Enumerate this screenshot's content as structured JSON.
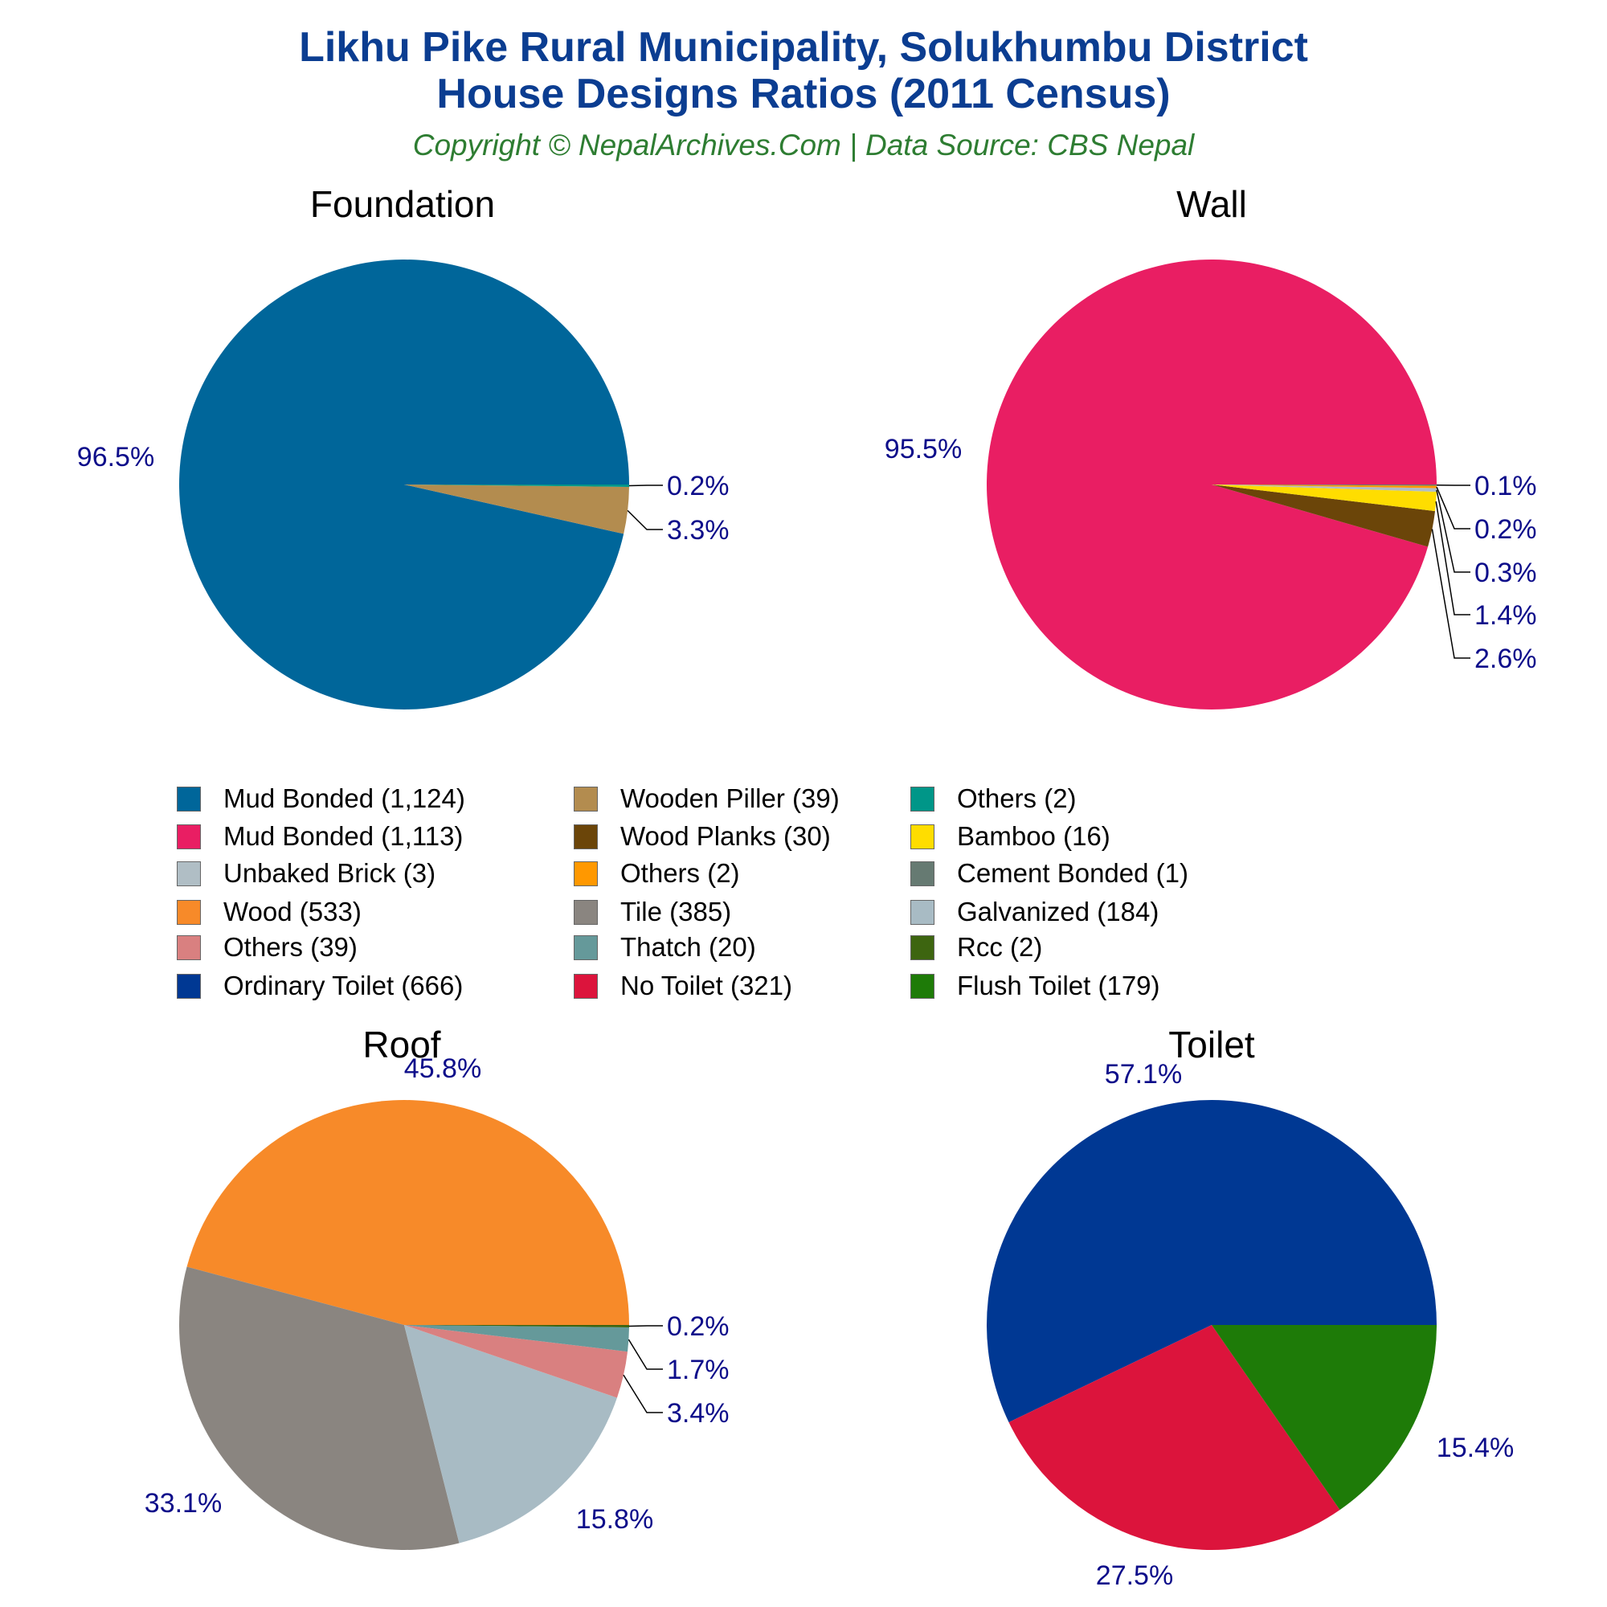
{
  "title_line1": "Likhu Pike Rural Municipality, Solukhumbu District",
  "title_line2": "House Designs Ratios (2011 Census)",
  "subtitle": "Copyright © NepalArchives.Com | Data Source: CBS Nepal",
  "chart_data": [
    {
      "type": "pie",
      "title": "Foundation",
      "slices": [
        {
          "label": "Mud Bonded",
          "value": 1124,
          "percent": "96.5%",
          "color": "#00669a"
        },
        {
          "label": "Wooden Piller",
          "value": 39,
          "percent": "3.3%",
          "color": "#b38c4f"
        },
        {
          "label": "Others",
          "value": 2,
          "percent": "0.2%",
          "color": "#009688"
        }
      ]
    },
    {
      "type": "pie",
      "title": "Wall",
      "slices": [
        {
          "label": "Mud Bonded",
          "value": 1113,
          "percent": "95.5%",
          "color": "#e91e63"
        },
        {
          "label": "Wood Planks",
          "value": 30,
          "percent": "2.6%",
          "color": "#6b4509"
        },
        {
          "label": "Bamboo",
          "value": 16,
          "percent": "1.4%",
          "color": "#ffdd00"
        },
        {
          "label": "Unbaked Brick",
          "value": 3,
          "percent": "0.3%",
          "color": "#b0bec5"
        },
        {
          "label": "Others",
          "value": 2,
          "percent": "0.2%",
          "color": "#ff9800"
        },
        {
          "label": "Cement Bonded",
          "value": 1,
          "percent": "0.1%",
          "color": "#667a72"
        }
      ]
    },
    {
      "type": "pie",
      "title": "Roof",
      "slices": [
        {
          "label": "Wood",
          "value": 533,
          "percent": "45.8%",
          "color": "#f78a29"
        },
        {
          "label": "Tile",
          "value": 385,
          "percent": "33.1%",
          "color": "#8a8580"
        },
        {
          "label": "Galvanized",
          "value": 184,
          "percent": "15.8%",
          "color": "#a8bbc4"
        },
        {
          "label": "Others",
          "value": 39,
          "percent": "3.4%",
          "color": "#d98080"
        },
        {
          "label": "Thatch",
          "value": 20,
          "percent": "1.7%",
          "color": "#65999a"
        },
        {
          "label": "Rcc",
          "value": 2,
          "percent": "0.2%",
          "color": "#3d6510"
        }
      ]
    },
    {
      "type": "pie",
      "title": "Toilet",
      "slices": [
        {
          "label": "Ordinary Toilet",
          "value": 666,
          "percent": "57.1%",
          "color": "#003893"
        },
        {
          "label": "No Toilet",
          "value": 321,
          "percent": "27.5%",
          "color": "#dc143c"
        },
        {
          "label": "Flush Toilet",
          "value": 179,
          "percent": "15.4%",
          "color": "#1e7b08"
        }
      ]
    }
  ],
  "legend": [
    {
      "text": "Mud Bonded (1,124)",
      "color": "#00669a"
    },
    {
      "text": "Mud Bonded (1,113)",
      "color": "#e91e63"
    },
    {
      "text": "Unbaked Brick (3)",
      "color": "#b0bec5"
    },
    {
      "text": "Wood (533)",
      "color": "#f78a29"
    },
    {
      "text": "Others (39)",
      "color": "#d98080"
    },
    {
      "text": "Ordinary Toilet (666)",
      "color": "#003893"
    },
    {
      "text": "Wooden Piller (39)",
      "color": "#b38c4f"
    },
    {
      "text": "Wood Planks (30)",
      "color": "#6b4509"
    },
    {
      "text": "Others (2)",
      "color": "#ff9800"
    },
    {
      "text": "Tile (385)",
      "color": "#8a8580"
    },
    {
      "text": "Thatch (20)",
      "color": "#65999a"
    },
    {
      "text": "No Toilet (321)",
      "color": "#dc143c"
    },
    {
      "text": "Others (2)",
      "color": "#009688"
    },
    {
      "text": "Bamboo (16)",
      "color": "#ffdd00"
    },
    {
      "text": "Cement Bonded (1)",
      "color": "#667a72"
    },
    {
      "text": "Galvanized (184)",
      "color": "#a8bbc4"
    },
    {
      "text": "Rcc (2)",
      "color": "#3d6510"
    },
    {
      "text": "Flush Toilet (179)",
      "color": "#1e7b08"
    }
  ]
}
